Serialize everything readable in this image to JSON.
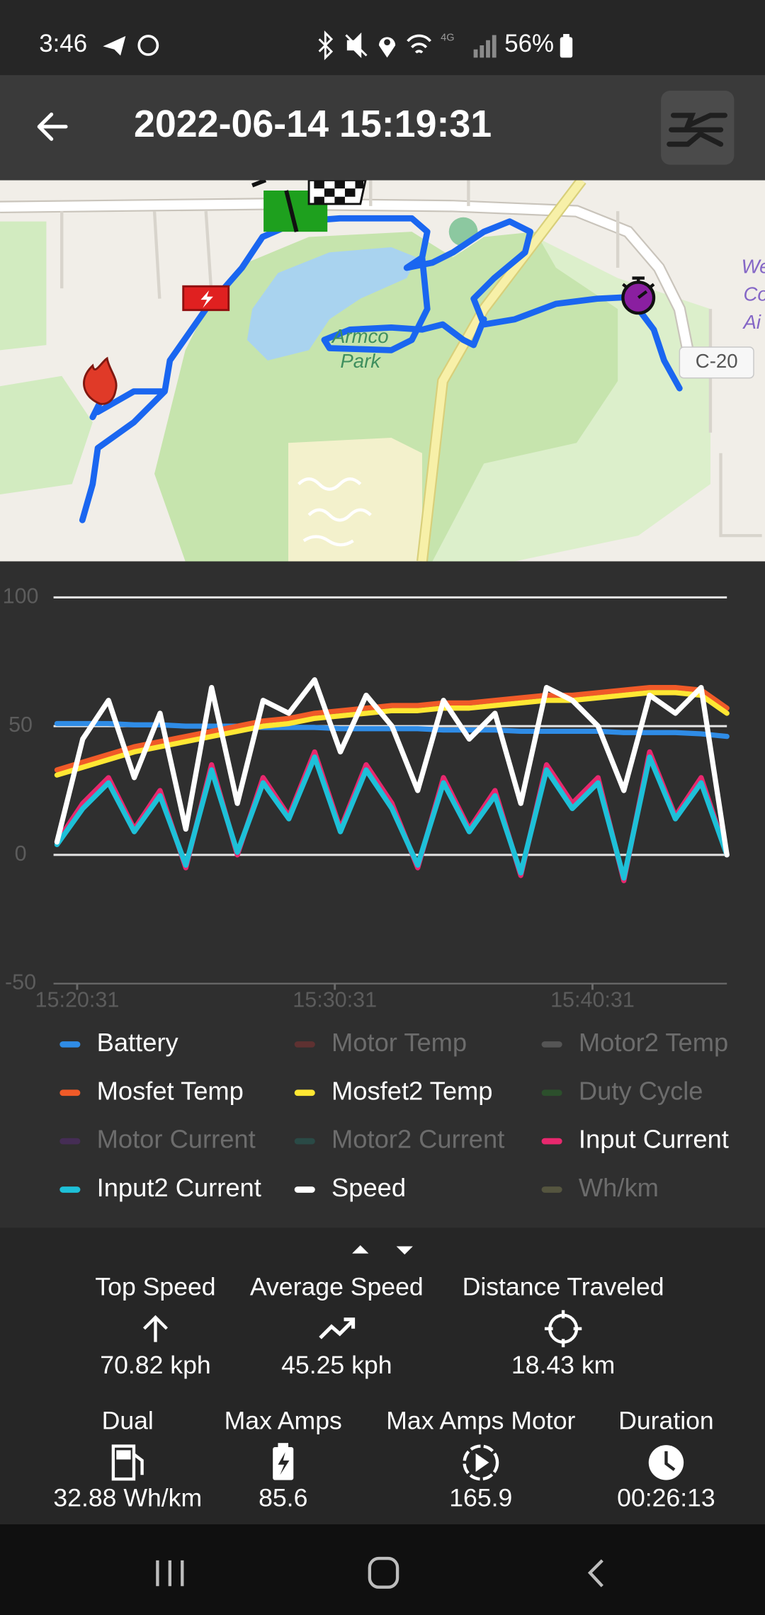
{
  "status_bar": {
    "time": "3:46",
    "network": "4G",
    "battery": "56%"
  },
  "header": {
    "title": "2022-06-14 15:19:31"
  },
  "map": {
    "park_label": [
      "Armco",
      "Park"
    ],
    "road_label": "C-20",
    "edge_label": [
      "We",
      "Co",
      "Ai"
    ]
  },
  "chart_data": {
    "type": "line",
    "x": [
      "15:19:44",
      "15:20:44",
      "15:21:44",
      "15:22:44",
      "15:23:44",
      "15:24:44",
      "15:25:44",
      "15:26:44",
      "15:27:44",
      "15:28:44",
      "15:29:44",
      "15:30:44",
      "15:31:44",
      "15:32:44",
      "15:33:44",
      "15:34:44",
      "15:35:44",
      "15:36:44",
      "15:37:44",
      "15:38:44",
      "15:39:44",
      "15:40:44",
      "15:41:44",
      "15:42:44",
      "15:43:44",
      "15:44:44",
      "15:45:44"
    ],
    "xlim": [
      "15:19:36",
      "15:45:44"
    ],
    "xticks": [
      "15:20:31",
      "15:30:31",
      "15:40:31"
    ],
    "ylim": [
      -50,
      100
    ],
    "yticks": [
      -50,
      0,
      50,
      100
    ],
    "grid": true,
    "legend": "bottom",
    "series": [
      {
        "name": "Battery",
        "color": "#2f8ce6",
        "enabled": true,
        "values": [
          51,
          51,
          51,
          50.5,
          50.5,
          50,
          50,
          50,
          49.5,
          49.5,
          49.5,
          49,
          49,
          49,
          49,
          48.5,
          48.5,
          48.5,
          48,
          48,
          48,
          48,
          47.5,
          47.5,
          47.5,
          47,
          46
        ]
      },
      {
        "name": "Motor Temp",
        "color": "#5e3131",
        "enabled": false
      },
      {
        "name": "Motor2 Temp",
        "color": "#555555",
        "enabled": false
      },
      {
        "name": "Mosfet Temp",
        "color": "#f05a28",
        "enabled": true,
        "values": [
          33,
          36,
          39,
          42,
          44,
          46,
          48,
          50,
          52,
          53,
          55,
          56,
          57,
          58,
          58,
          59,
          59,
          60,
          61,
          62,
          62,
          63,
          64,
          65,
          65,
          64,
          57
        ]
      },
      {
        "name": "Mosfet2 Temp",
        "color": "#ffe733",
        "enabled": true,
        "values": [
          31,
          34,
          37,
          40,
          42,
          44,
          46,
          48,
          50,
          51,
          53,
          54,
          55,
          56,
          56,
          57,
          57,
          58,
          59,
          60,
          60,
          61,
          62,
          63,
          63,
          62,
          55
        ]
      },
      {
        "name": "Duty Cycle",
        "color": "#2c4f2c",
        "enabled": false
      },
      {
        "name": "Motor Current",
        "color": "#452d55",
        "enabled": false
      },
      {
        "name": "Motor2 Current",
        "color": "#2a4a46",
        "enabled": false
      },
      {
        "name": "Input Current",
        "color": "#e8286e",
        "enabled": true,
        "values": [
          5,
          20,
          30,
          10,
          25,
          -5,
          35,
          0,
          30,
          15,
          40,
          10,
          35,
          20,
          -5,
          30,
          10,
          25,
          -8,
          35,
          20,
          30,
          -10,
          40,
          15,
          30,
          0
        ]
      },
      {
        "name": "Input2 Current",
        "color": "#1ec0d8",
        "enabled": true,
        "values": [
          4,
          18,
          28,
          9,
          23,
          -4,
          33,
          1,
          28,
          14,
          38,
          9,
          33,
          18,
          -4,
          28,
          9,
          23,
          -7,
          33,
          18,
          28,
          -9,
          38,
          14,
          28,
          0
        ]
      },
      {
        "name": "Speed",
        "color": "#ffffff",
        "enabled": true,
        "values": [
          5,
          45,
          60,
          30,
          55,
          10,
          65,
          20,
          60,
          55,
          68,
          40,
          62,
          50,
          25,
          60,
          45,
          55,
          20,
          65,
          60,
          50,
          25,
          62,
          55,
          65,
          0
        ]
      },
      {
        "name": "Wh/km",
        "color": "#55553f",
        "enabled": false
      }
    ]
  },
  "stats": {
    "row1": [
      {
        "label": "Top Speed",
        "value": "70.82 kph"
      },
      {
        "label": "Average Speed",
        "value": "45.25 kph"
      },
      {
        "label": "Distance Traveled",
        "value": "18.43 km"
      }
    ],
    "row2": [
      {
        "label": "Dual",
        "value": "32.88 Wh/km"
      },
      {
        "label": "Max Amps",
        "value": "85.6"
      },
      {
        "label": "Max Amps Motor",
        "value": "165.9"
      },
      {
        "label": "Duration",
        "value": "00:26:13"
      }
    ]
  }
}
